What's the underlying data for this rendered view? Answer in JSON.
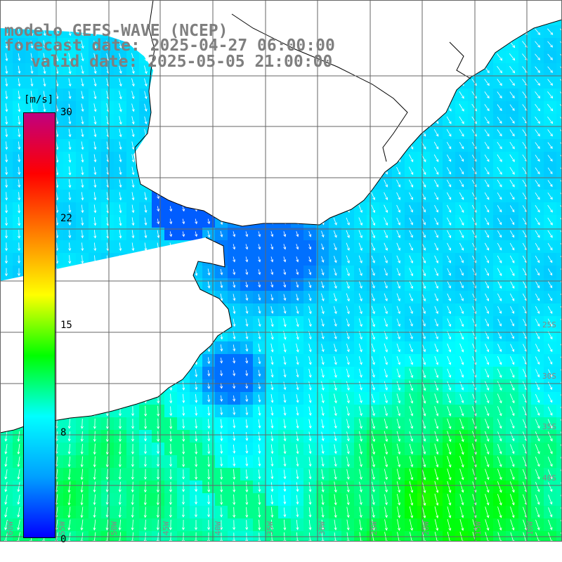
{
  "header": {
    "model_line": "modelo GEFS-WAVE (NCEP)",
    "forecast_line": "forecast date: 2025-04-27 06:00:00",
    "valid_line": "valid date: 2025-05-05 21:00:00"
  },
  "colorbar": {
    "unit": "[m/s]",
    "ticks": [
      {
        "label": "30",
        "value": 30
      },
      {
        "label": "22",
        "value": 22
      },
      {
        "label": "15",
        "value": 15
      },
      {
        "label": "8",
        "value": 8
      },
      {
        "label": "0",
        "value": 0
      }
    ],
    "stops": [
      "#0000ff",
      "#00a0ff",
      "#00ffff",
      "#00ff00",
      "#ffff00",
      "#ff8000",
      "#ff0000",
      "#c00080"
    ]
  },
  "map": {
    "longitude_labels": [
      "60W",
      "55W",
      "50W",
      "45W",
      "40W",
      "35W",
      "30W",
      "25W",
      "20W",
      "15W",
      "10W"
    ],
    "latitude_labels": [
      "25S",
      "30S",
      "35S",
      "40S"
    ],
    "colors": {
      "land": "#ffffff",
      "coast": "#000000",
      "grid": "#555555",
      "arrows": "#ffffff"
    }
  },
  "chart_data": {
    "type": "heatmap",
    "variable": "wind speed",
    "unit": "[m/s]",
    "colorbar_range": [
      0,
      30
    ],
    "regions": [
      {
        "area": "southern Brazil coastal shelf",
        "speed": 3
      },
      {
        "area": "northern offshore waters",
        "speed": 7
      },
      {
        "area": "Uruguay / Rio de la Plata coast",
        "speed": 3
      },
      {
        "area": "open ocean south-east",
        "speed": 11
      }
    ],
    "flow_direction": "mostly toward south / south-east"
  }
}
